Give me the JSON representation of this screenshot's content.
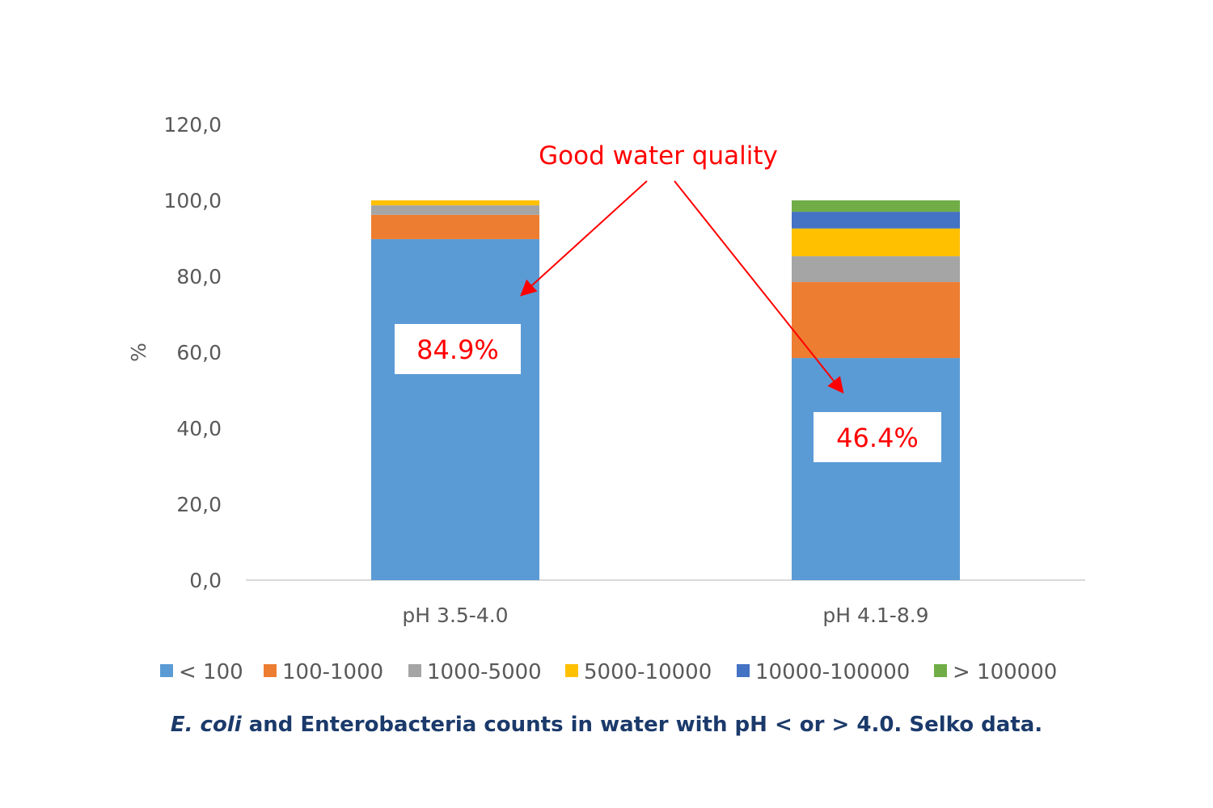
{
  "chart_data": {
    "type": "bar",
    "stacked": true,
    "categories": [
      "pH 3.5-4.0",
      "pH 4.1-8.9"
    ],
    "ylabel": "%",
    "ylim": [
      0,
      120
    ],
    "yticks": [
      "0,0",
      "20,0",
      "40,0",
      "60,0",
      "80,0",
      "100,0",
      "120,0"
    ],
    "grid": false,
    "legend_position": "bottom",
    "series": [
      {
        "name": "< 100",
        "color": "#5b9bd5",
        "values": [
          89.8,
          58.5
        ]
      },
      {
        "name": "100-1000",
        "color": "#ed7d31",
        "values": [
          6.4,
          20.0
        ]
      },
      {
        "name": "1000-5000",
        "color": "#a5a5a5",
        "values": [
          2.5,
          6.8
        ]
      },
      {
        "name": "5000-10000",
        "color": "#ffc000",
        "values": [
          1.3,
          7.3
        ]
      },
      {
        "name": "10000-100000",
        "color": "#4472c4",
        "values": [
          0,
          4.4
        ]
      },
      {
        "name": "> 100000",
        "color": "#70ad47",
        "values": [
          0,
          3.0
        ]
      }
    ],
    "annotations": {
      "title": "Good water quality",
      "labels": [
        "84.9%",
        "46.4%"
      ],
      "color": "#ff0000"
    }
  },
  "caption": {
    "italic": "E. coli",
    "rest": " and Enterobacteria counts in water with pH < or > 4.0. Selko data."
  }
}
